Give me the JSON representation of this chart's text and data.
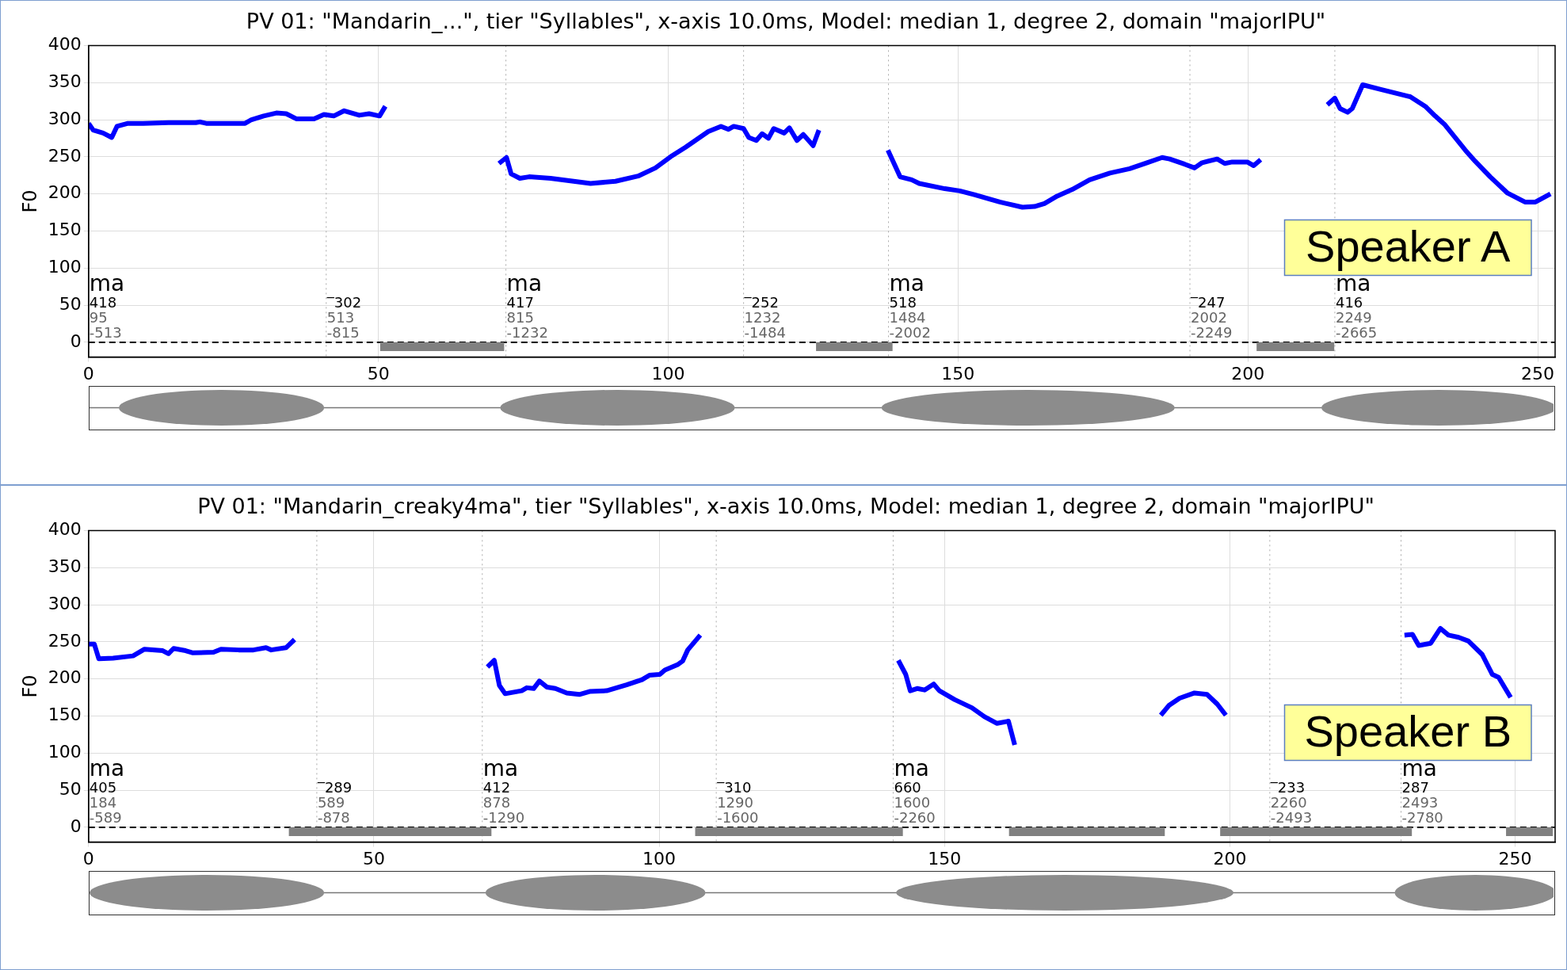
{
  "chart_data": [
    {
      "type": "line",
      "title": "PV 01: \"Mandarin_...\", tier \"Syllables\", x-axis 10.0ms, Model: median 1, degree 2, domain \"majorIPU\"",
      "ylabel": "F0",
      "xlim": [
        0,
        253
      ],
      "xticks": [
        0,
        50,
        100,
        150,
        200,
        250
      ],
      "ylim": [
        -20,
        400
      ],
      "yticks": [
        0,
        50,
        100,
        150,
        200,
        250,
        300,
        350,
        400
      ],
      "grid": true,
      "series": [
        {
          "color": "#0000ff",
          "x": [
            0,
            0.8,
            2.5,
            4,
            4.9,
            6.8,
            9.4,
            13.8,
            18.5,
            19.2,
            20.3,
            27,
            28.1,
            30.2,
            32.4,
            34.1,
            35.9,
            38.9,
            40.6,
            42.3,
            44.1,
            46.7,
            48.4,
            50.2,
            51.2,
            61,
            70.8,
            72.1,
            72.9,
            74.4,
            76,
            79.7,
            86.6,
            90.9,
            94.8,
            97.8,
            100.4,
            103,
            106.9,
            109.1,
            110.4,
            111.3,
            113,
            113.9,
            115.2,
            116.2,
            117.3,
            118.2,
            120,
            120.9,
            122.2,
            123.3,
            125,
            126,
            132,
            137.9,
            140,
            142,
            143.3,
            147.7,
            150.3,
            152.8,
            157.2,
            161.1,
            163.2,
            164.9,
            167.1,
            169.7,
            172.7,
            176.2,
            179.6,
            182.6,
            185.2,
            186.5,
            189.1,
            190.8,
            192.1,
            194.7,
            196,
            197.3,
            199.9,
            201,
            202.2,
            208,
            213.7,
            215,
            215.9,
            217.2,
            218,
            219.8,
            222.8,
            228,
            230.6,
            232.3,
            234,
            237.5,
            239.2,
            241.8,
            244.8,
            247.8,
            249.6,
            252.2
          ],
          "values": [
            295,
            286,
            282,
            276,
            291,
            295,
            295,
            296,
            296,
            297,
            295,
            295,
            300,
            305,
            309,
            308,
            301,
            301,
            307,
            305,
            312,
            306,
            308,
            305,
            318,
            null,
            241,
            249,
            227,
            221,
            223,
            221,
            214,
            217,
            224,
            235,
            250,
            263,
            284,
            291,
            287,
            291,
            288,
            276,
            272,
            281,
            275,
            288,
            282,
            289,
            272,
            280,
            265,
            286,
            null,
            259,
            223,
            219,
            214,
            207,
            204,
            199,
            189,
            182,
            183,
            187,
            197,
            206,
            219,
            228,
            234,
            242,
            249,
            247,
            240,
            235,
            242,
            247,
            241,
            243,
            243,
            238,
            246,
            null,
            320,
            329,
            315,
            310,
            315,
            347,
            341,
            331,
            318,
            305,
            293,
            259,
            244,
            223,
            201,
            189,
            189,
            200
          ]
        },
        {
          "color": "#808080",
          "x": [
            50.3,
            71.7,
            99,
            125.5,
            138.7,
            170,
            201.5,
            214.9
          ],
          "values": [
            -6,
            -6,
            null,
            -6,
            -6,
            null,
            -6,
            -6
          ]
        }
      ],
      "ref_lines": [
        {
          "axis": "y",
          "value": 0,
          "line_style": "dashed",
          "color": "#000000"
        },
        {
          "axis": "x",
          "value": 0,
          "line_style": "dotted",
          "color": "#aaaaaa"
        },
        {
          "axis": "x",
          "value": 41,
          "line_style": "dotted",
          "color": "#aaaaaa"
        },
        {
          "axis": "x",
          "value": 72,
          "line_style": "dotted",
          "color": "#aaaaaa"
        },
        {
          "axis": "x",
          "value": 113,
          "line_style": "dotted",
          "color": "#aaaaaa"
        },
        {
          "axis": "x",
          "value": 138,
          "line_style": "dotted",
          "color": "#aaaaaa"
        },
        {
          "axis": "x",
          "value": 190,
          "line_style": "dotted",
          "color": "#aaaaaa"
        },
        {
          "axis": "x",
          "value": 215,
          "line_style": "dotted",
          "color": "#aaaaaa"
        }
      ],
      "annotations": [
        "ma\n418\n95\n-513",
        "‾302\n513\n-815",
        "ma\n417\n815\n-1232",
        "‾252\n1232\n-1484",
        "ma\n518\n1484\n-2002",
        "‾247\n2002\n-2249",
        "ma\n416\n2249\n-2665",
        "Speaker A"
      ]
    },
    {
      "type": "line",
      "title": "PV 01: \"Mandarin_creaky4ma\", tier \"Syllables\", x-axis 10.0ms, Model: median 1, degree 2, domain \"majorIPU\"",
      "ylabel": "F0",
      "xlim": [
        0,
        257
      ],
      "xticks": [
        0,
        50,
        100,
        150,
        200,
        250
      ],
      "ylim": [
        -20,
        400
      ],
      "yticks": [
        0,
        50,
        100,
        150,
        200,
        250,
        300,
        350,
        400
      ],
      "grid": true,
      "series": [
        {
          "color": "#0000ff",
          "x": [
            0,
            1,
            1.8,
            4.3,
            7.8,
            9.8,
            13,
            14,
            14.9,
            17,
            18.3,
            21.9,
            23.2,
            26.3,
            28.9,
            31.1,
            32,
            34.6,
            36.1,
            53,
            69.9,
            71.1,
            72,
            73,
            75.9,
            76.8,
            78,
            79,
            80.3,
            81.8,
            83.8,
            86,
            87.8,
            90.8,
            94.3,
            97,
            98.3,
            100.1,
            101,
            103.2,
            104.1,
            105,
            107.2,
            125,
            141.9,
            143.2,
            144,
            145.2,
            146.5,
            148.1,
            149.1,
            151.8,
            154.8,
            157,
            159.2,
            161.2,
            162.3,
            175,
            187.9,
            189.3,
            191.2,
            193.8,
            196,
            197.8,
            199.3,
            215,
            230.6,
            232,
            233.1,
            235.2,
            236.9,
            238.3,
            240.1,
            241.8,
            244.2,
            246,
            247.1,
            249.2
          ],
          "values": [
            247,
            247,
            227,
            228,
            231,
            240,
            238,
            234,
            241,
            238,
            235,
            236,
            240,
            239,
            239,
            242,
            239,
            242,
            253,
            null,
            216,
            225,
            191,
            180,
            184,
            188,
            187,
            197,
            189,
            187,
            181,
            179,
            183,
            184,
            192,
            199,
            205,
            206,
            212,
            219,
            224,
            239,
            259,
            null,
            225,
            206,
            184,
            187,
            185,
            193,
            184,
            172,
            161,
            149,
            140,
            143,
            111,
            null,
            151,
            164,
            174,
            181,
            179,
            166,
            151,
            null,
            259,
            260,
            245,
            248,
            268,
            259,
            256,
            251,
            233,
            206,
            202,
            175
          ]
        },
        {
          "color": "#808080",
          "x": [
            35.1,
            70.6,
            88,
            106.3,
            142.7,
            152,
            161.3,
            188.6,
            193,
            198.3,
            231.9,
            240,
            248.4,
            256.6
          ],
          "values": [
            -6,
            -6,
            null,
            -6,
            -6,
            null,
            -6,
            -6,
            null,
            -6,
            -6,
            null,
            -6,
            -6
          ]
        }
      ],
      "ref_lines": [
        {
          "axis": "y",
          "value": 0,
          "line_style": "dashed",
          "color": "#000000"
        },
        {
          "axis": "x",
          "value": 0,
          "line_style": "dotted",
          "color": "#aaaaaa"
        },
        {
          "axis": "x",
          "value": 40,
          "line_style": "dotted",
          "color": "#aaaaaa"
        },
        {
          "axis": "x",
          "value": 69,
          "line_style": "dotted",
          "color": "#aaaaaa"
        },
        {
          "axis": "x",
          "value": 110,
          "line_style": "dotted",
          "color": "#aaaaaa"
        },
        {
          "axis": "x",
          "value": 141,
          "line_style": "dotted",
          "color": "#aaaaaa"
        },
        {
          "axis": "x",
          "value": 207,
          "line_style": "dotted",
          "color": "#aaaaaa"
        },
        {
          "axis": "x",
          "value": 230,
          "line_style": "dotted",
          "color": "#aaaaaa"
        }
      ],
      "annotations": [
        "ma\n405\n184\n-589",
        "‾289\n589\n-878",
        "ma\n412\n878\n-1290",
        "‾310\n1290\n-1600",
        "ma\n660\n1600\n-2260",
        "‾233\n2260\n-2493",
        "ma\n287\n2493\n-2780",
        "Speaker B"
      ]
    }
  ]
}
